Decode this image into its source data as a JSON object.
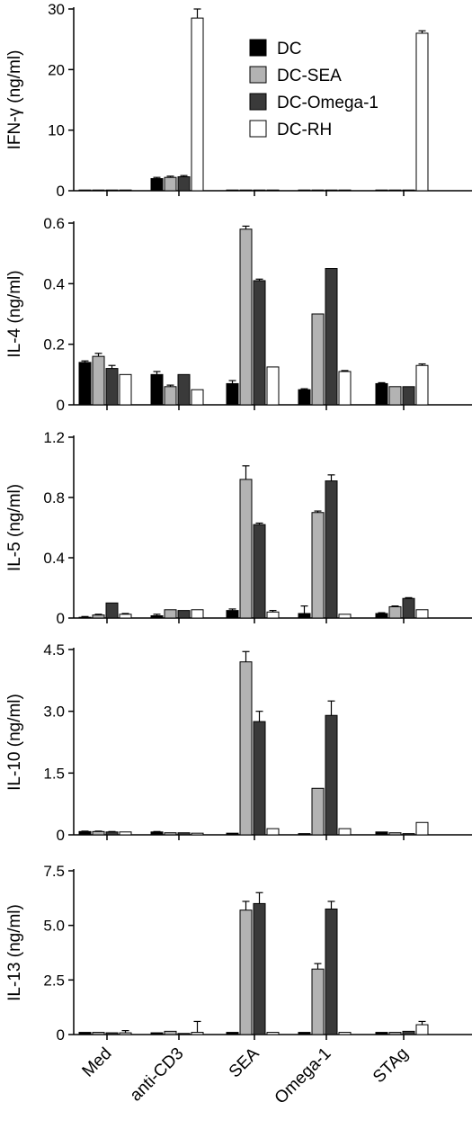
{
  "chart_data": {
    "type": "bar",
    "categories": [
      "Med",
      "anti-CD3",
      "SEA",
      "Omega-1",
      "STAg"
    ],
    "series_styles": [
      {
        "name": "DC",
        "color": "#000000"
      },
      {
        "name": "DC-SEA",
        "color": "#b3b3b3"
      },
      {
        "name": "DC-Omega-1",
        "color": "#3a3a3a"
      },
      {
        "name": "DC-RH",
        "color": "#ffffff"
      }
    ],
    "legend": {
      "position": "top-right",
      "panel": 0
    },
    "grid": false,
    "panels": [
      {
        "ylabel": "IFN-γ (ng/ml)",
        "ylim": [
          0,
          30
        ],
        "yticks": [
          "0",
          "10",
          "20",
          "30"
        ],
        "ytick_values": [
          0,
          10,
          20,
          30
        ],
        "values": [
          [
            0.05,
            0.05,
            0.1,
            0.05
          ],
          [
            2.0,
            2.2,
            2.3,
            28.5
          ],
          [
            0.05,
            0.05,
            0.05,
            0.05
          ],
          [
            0.05,
            0.05,
            0.05,
            0.05
          ],
          [
            0.05,
            0.05,
            0.05,
            26.0
          ]
        ],
        "errors": [
          [
            0,
            0,
            0,
            0
          ],
          [
            0.2,
            0.2,
            0.2,
            1.5
          ],
          [
            0,
            0,
            0,
            0
          ],
          [
            0,
            0,
            0,
            0
          ],
          [
            0,
            0,
            0,
            0.4
          ]
        ]
      },
      {
        "ylabel": "IL-4 (ng/ml)",
        "ylim": [
          0,
          0.6
        ],
        "yticks": [
          "0",
          "0.2",
          "0.4",
          "0.6"
        ],
        "ytick_values": [
          0,
          0.2,
          0.4,
          0.6
        ],
        "values": [
          [
            0.14,
            0.16,
            0.12,
            0.1
          ],
          [
            0.1,
            0.06,
            0.1,
            0.05
          ],
          [
            0.07,
            0.58,
            0.41,
            0.125
          ],
          [
            0.05,
            0.3,
            0.45,
            0.11
          ],
          [
            0.07,
            0.06,
            0.06,
            0.13
          ]
        ],
        "errors": [
          [
            0.005,
            0.01,
            0.01,
            0
          ],
          [
            0.01,
            0.005,
            0,
            0
          ],
          [
            0.01,
            0.01,
            0.005,
            0
          ],
          [
            0.003,
            0,
            0,
            0.003
          ],
          [
            0.003,
            0,
            0,
            0.005
          ]
        ]
      },
      {
        "ylabel": "IL-5 (ng/ml)",
        "ylim": [
          0,
          1.2
        ],
        "yticks": [
          "0",
          "0.4",
          "0.8",
          "1.2"
        ],
        "ytick_values": [
          0,
          0.4,
          0.8,
          1.2
        ],
        "values": [
          [
            0.005,
            0.02,
            0.1,
            0.025
          ],
          [
            0.015,
            0.055,
            0.05,
            0.055
          ],
          [
            0.05,
            0.92,
            0.62,
            0.04
          ],
          [
            0.03,
            0.7,
            0.91,
            0.025
          ],
          [
            0.03,
            0.075,
            0.13,
            0.055
          ]
        ],
        "errors": [
          [
            0.005,
            0.005,
            0,
            0.005
          ],
          [
            0.01,
            0,
            0,
            0
          ],
          [
            0.01,
            0.09,
            0.01,
            0.01
          ],
          [
            0.05,
            0.01,
            0.04,
            0
          ],
          [
            0.005,
            0.005,
            0.005,
            0
          ]
        ]
      },
      {
        "ylabel": "IL-10 (ng/ml)",
        "ylim": [
          0,
          4.5
        ],
        "yticks": [
          "0",
          "1.5",
          "3.0",
          "4.5"
        ],
        "ytick_values": [
          0,
          1.5,
          3.0,
          4.5
        ],
        "values": [
          [
            0.08,
            0.08,
            0.07,
            0.07
          ],
          [
            0.07,
            0.05,
            0.05,
            0.04
          ],
          [
            0.04,
            4.2,
            2.75,
            0.15
          ],
          [
            0.03,
            1.13,
            2.9,
            0.15
          ],
          [
            0.07,
            0.05,
            0.03,
            0.3
          ]
        ],
        "errors": [
          [
            0.01,
            0.01,
            0.01,
            0
          ],
          [
            0.01,
            0,
            0,
            0
          ],
          [
            0,
            0.25,
            0.25,
            0
          ],
          [
            0,
            0,
            0.35,
            0
          ],
          [
            0,
            0,
            0,
            0
          ]
        ]
      },
      {
        "ylabel": "IL-13 (ng/ml)",
        "ylim": [
          0,
          7.5
        ],
        "yticks": [
          "0",
          "2.5",
          "5.0",
          "7.5"
        ],
        "ytick_values": [
          0,
          2.5,
          5.0,
          7.5
        ],
        "values": [
          [
            0.1,
            0.1,
            0.08,
            0.08
          ],
          [
            0.08,
            0.15,
            0.05,
            0.1
          ],
          [
            0.1,
            5.7,
            6.0,
            0.1
          ],
          [
            0.1,
            3.0,
            5.75,
            0.1
          ],
          [
            0.1,
            0.1,
            0.15,
            0.45
          ]
        ],
        "errors": [
          [
            0,
            0,
            0,
            0.1
          ],
          [
            0,
            0,
            0,
            0.5
          ],
          [
            0,
            0.4,
            0.5,
            0
          ],
          [
            0,
            0.25,
            0.35,
            0
          ],
          [
            0,
            0,
            0,
            0.15
          ]
        ]
      }
    ]
  }
}
